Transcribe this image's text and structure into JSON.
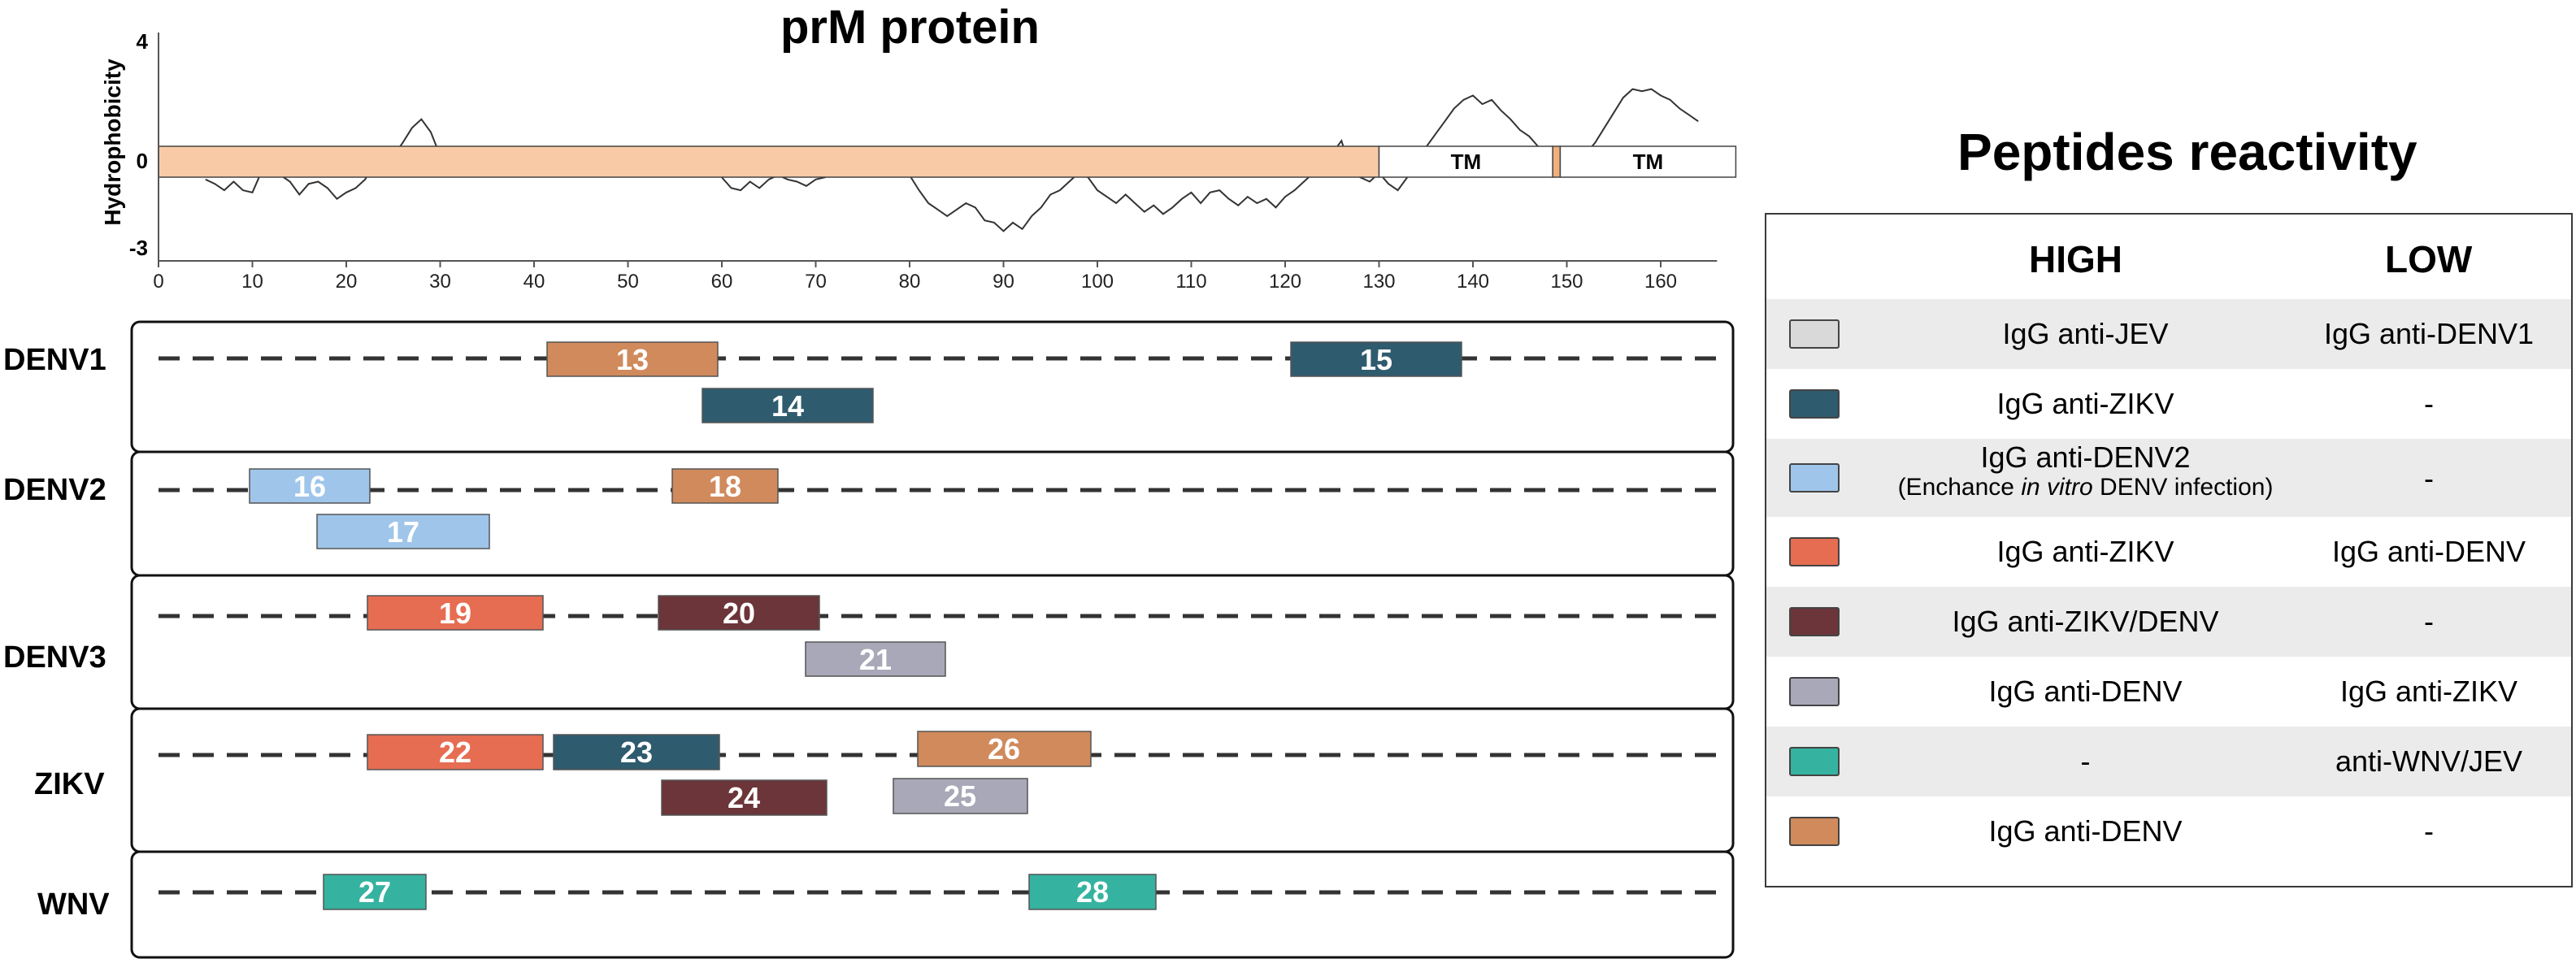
{
  "protein_title": "prM protein",
  "hydro": {
    "ylabel": "Hydrophobicity",
    "y_ticks": [
      "4",
      "0",
      "-3"
    ],
    "x_ticks": [
      "0",
      "10",
      "20",
      "30",
      "40",
      "50",
      "60",
      "70",
      "80",
      "90",
      "100",
      "110",
      "120",
      "130",
      "140",
      "150",
      "160"
    ],
    "domains": [
      {
        "label": "",
        "start": 0,
        "end": 130,
        "color": "#f8cba6"
      },
      {
        "label": "TM",
        "start": 130,
        "end": 148.5,
        "color": "#ffffff"
      },
      {
        "label": "",
        "start": 148.5,
        "end": 149.3,
        "color": "#f0b07c"
      },
      {
        "label": "TM",
        "start": 149.3,
        "end": 168,
        "color": "#ffffff"
      }
    ],
    "profile_x": [
      5,
      6,
      7,
      8,
      9,
      10,
      11,
      12,
      13,
      14,
      15,
      16,
      17,
      18,
      19,
      20,
      21,
      22,
      23,
      24,
      25,
      26,
      27,
      28,
      29,
      30,
      31,
      32,
      33,
      34,
      35,
      36,
      37,
      38,
      39,
      40,
      41,
      42,
      43,
      44,
      45,
      46,
      47,
      48,
      49,
      50,
      51,
      52,
      53,
      54,
      55,
      56,
      57,
      58,
      59,
      60,
      61,
      62,
      63,
      64,
      65,
      66,
      67,
      68,
      69,
      70,
      71,
      72,
      73,
      74,
      75,
      76,
      77,
      78,
      79,
      80,
      81,
      82,
      83,
      84,
      85,
      86,
      87,
      88,
      89,
      90,
      91,
      92,
      93,
      94,
      95,
      96,
      97,
      98,
      99,
      100,
      101,
      102,
      103,
      104,
      105,
      106,
      107,
      108,
      109,
      110,
      111,
      112,
      113,
      114,
      115,
      116,
      117,
      118,
      119,
      120,
      121,
      122,
      123,
      124,
      125,
      126,
      127,
      128,
      129,
      130,
      131,
      132,
      133,
      134,
      135,
      136,
      137,
      138,
      139,
      140,
      141,
      142,
      143,
      144,
      145,
      146,
      147,
      148,
      149,
      150,
      151,
      152,
      153,
      154,
      155,
      156,
      157,
      158,
      159,
      160,
      161,
      162,
      163,
      164
    ],
    "profile_y": [
      -0.9,
      -1.1,
      -1.4,
      -1.0,
      -1.4,
      -1.5,
      -0.5,
      -0.6,
      -0.7,
      -1.0,
      -1.6,
      -1.1,
      -1.0,
      -1.3,
      -1.8,
      -1.5,
      -1.3,
      -0.9,
      -0.2,
      0.5,
      0.2,
      0.8,
      1.5,
      1.9,
      1.3,
      0.2,
      -0.1,
      -0.3,
      -0.4,
      -0.1,
      0.1,
      -0.4,
      0.1,
      0.4,
      0.2,
      0.1,
      0.4,
      0.3,
      0.2,
      -0.3,
      -0.4,
      -0.1,
      0.1,
      0.2,
      0.1,
      -0.1,
      -0.2,
      0.1,
      -0.3,
      -0.5,
      -0.1,
      -0.4,
      -0.3,
      -0.7,
      -0.4,
      -0.8,
      -1.3,
      -1.4,
      -1.0,
      -1.3,
      -0.9,
      -0.7,
      -0.9,
      -1.0,
      -1.2,
      -0.9,
      -0.8,
      -0.6,
      -0.3,
      -0.1,
      -0.4,
      -0.2,
      0.1,
      -0.1,
      -0.4,
      -0.7,
      -1.4,
      -2.0,
      -2.3,
      -2.6,
      -2.3,
      -2.0,
      -2.2,
      -2.8,
      -2.9,
      -3.3,
      -2.9,
      -3.2,
      -2.6,
      -2.2,
      -1.6,
      -1.4,
      -1.0,
      -0.6,
      -0.8,
      -1.4,
      -1.7,
      -2.0,
      -1.6,
      -2.0,
      -2.4,
      -2.1,
      -2.5,
      -2.2,
      -1.8,
      -1.5,
      -2.0,
      -1.5,
      -1.4,
      -1.8,
      -2.1,
      -1.7,
      -2.0,
      -1.8,
      -2.2,
      -1.7,
      -1.4,
      -1.0,
      -0.6,
      -0.2,
      0.3,
      0.9,
      -0.5,
      -0.8,
      -1.0,
      -0.6,
      -1.1,
      -1.4,
      -0.8,
      0.1,
      0.6,
      1.2,
      1.8,
      2.4,
      2.8,
      3.0,
      2.6,
      2.8,
      2.3,
      1.9,
      1.4,
      1.1,
      0.6,
      0.2,
      -0.2,
      -0.3,
      -0.2,
      0.3,
      0.8,
      1.5,
      2.2,
      2.9,
      3.3,
      3.2,
      3.3,
      3.0,
      2.8,
      2.4,
      2.1,
      1.8
    ]
  },
  "virus_labels": [
    "DENV1",
    "DENV2",
    "DENV3",
    "ZIKV",
    "WNV"
  ],
  "peptides": [
    {
      "label": "13",
      "color": "#d08a5c"
    },
    {
      "label": "15",
      "color": "#2f5b6e"
    },
    {
      "label": "14",
      "color": "#2f5b6e"
    },
    {
      "label": "16",
      "color": "#9fc5ea"
    },
    {
      "label": "18",
      "color": "#d08a5c"
    },
    {
      "label": "17",
      "color": "#9fc5ea"
    },
    {
      "label": "19",
      "color": "#e66d52"
    },
    {
      "label": "20",
      "color": "#6c3539"
    },
    {
      "label": "21",
      "color": "#a8a8b8"
    },
    {
      "label": "22",
      "color": "#e66d52"
    },
    {
      "label": "23",
      "color": "#2f5b6e"
    },
    {
      "label": "26",
      "color": "#d08a5c"
    },
    {
      "label": "24",
      "color": "#6c3539"
    },
    {
      "label": "25",
      "color": "#a8a8b8"
    },
    {
      "label": "27",
      "color": "#35b3a0"
    },
    {
      "label": "28",
      "color": "#35b3a0"
    }
  ],
  "reactivity": {
    "title": "Peptides reactivity",
    "col_high": "HIGH",
    "col_low": "LOW",
    "rows": [
      {
        "color": "#d9d9d9",
        "high": "IgG anti-JEV",
        "high_sub": "",
        "low": "IgG anti-DENV1"
      },
      {
        "color": "#2f5b6e",
        "high": "IgG anti-ZIKV",
        "high_sub": "",
        "low": "-"
      },
      {
        "color": "#9fc5ea",
        "high": "IgG anti-DENV2",
        "high_sub": "(Enchance in vitro DENV infection)",
        "low": "-"
      },
      {
        "color": "#e66d52",
        "high": "IgG anti-ZIKV",
        "high_sub": "",
        "low": "IgG anti-DENV"
      },
      {
        "color": "#6c3539",
        "high": "IgG anti-ZIKV/DENV",
        "high_sub": "",
        "low": "-"
      },
      {
        "color": "#a8a8b8",
        "high": "IgG anti-DENV",
        "high_sub": "",
        "low": "IgG anti-ZIKV"
      },
      {
        "color": "#35b3a0",
        "high": "-",
        "high_sub": "",
        "low": "anti-WNV/JEV"
      },
      {
        "color": "#d08a5c",
        "high": "IgG anti-DENV",
        "high_sub": "",
        "low": "-"
      }
    ]
  }
}
